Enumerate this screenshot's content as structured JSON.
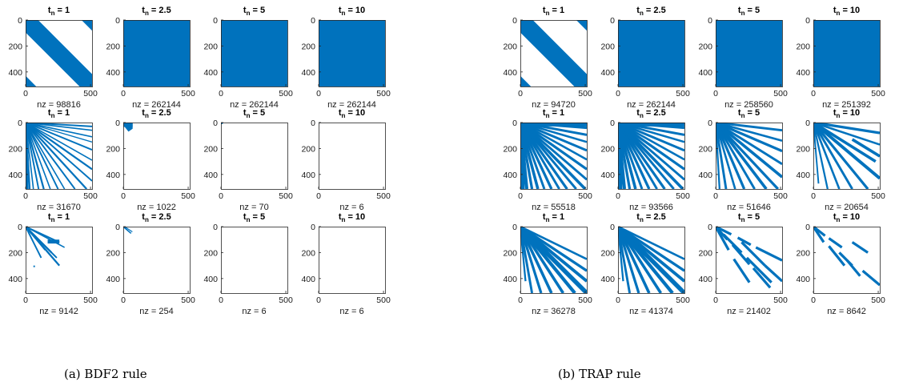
{
  "figure": {
    "captions": [
      "(a) BDF2 rule",
      "(b) TRAP rule"
    ]
  },
  "chart_data": [
    {
      "type": "heatmap",
      "panel": "(a) BDF2 rule",
      "matrix_size": 512,
      "xlim": [
        0,
        512
      ],
      "ylim": [
        0,
        512
      ],
      "y_reversed": true,
      "xticks": [
        0,
        500
      ],
      "yticks": [
        0,
        200,
        400
      ],
      "title_prefix": "t",
      "title_subscript": "n",
      "time_values": [
        "1",
        "2.5",
        "5",
        "10"
      ],
      "marker_color": "#0072BD",
      "rows": [
        {
          "pattern": [
            "wrapband",
            "full",
            "full",
            "full"
          ],
          "nz": [
            98816,
            262144,
            262144,
            262144
          ]
        },
        {
          "pattern": [
            "fan-large",
            "corner-70",
            "corner-10",
            "corner-3"
          ],
          "nz": [
            31670,
            1022,
            70,
            6
          ]
        },
        {
          "pattern": [
            "fan-small",
            "corner-70s",
            "corner-3",
            "corner-3"
          ],
          "nz": [
            9142,
            254,
            6,
            6
          ]
        }
      ]
    },
    {
      "type": "heatmap",
      "panel": "(b) TRAP rule",
      "matrix_size": 512,
      "xlim": [
        0,
        512
      ],
      "ylim": [
        0,
        512
      ],
      "y_reversed": true,
      "xticks": [
        0,
        500
      ],
      "yticks": [
        0,
        200,
        400
      ],
      "title_prefix": "t",
      "title_subscript": "n",
      "time_values": [
        "1",
        "2.5",
        "5",
        "10"
      ],
      "marker_color": "#0072BD",
      "rows": [
        {
          "pattern": [
            "wrapband",
            "full",
            "full",
            "full"
          ],
          "nz": [
            94720,
            262144,
            258560,
            251392
          ]
        },
        {
          "pattern": [
            "fan-dense",
            "fan-dense",
            "fan-medium",
            "fan-sparse"
          ],
          "nz": [
            55518,
            93566,
            51646,
            20654
          ]
        },
        {
          "pattern": [
            "fan-bands",
            "fan-bands",
            "fan-broken",
            "fan-sparse2"
          ],
          "nz": [
            36278,
            41374,
            21402,
            8642
          ]
        }
      ]
    }
  ]
}
